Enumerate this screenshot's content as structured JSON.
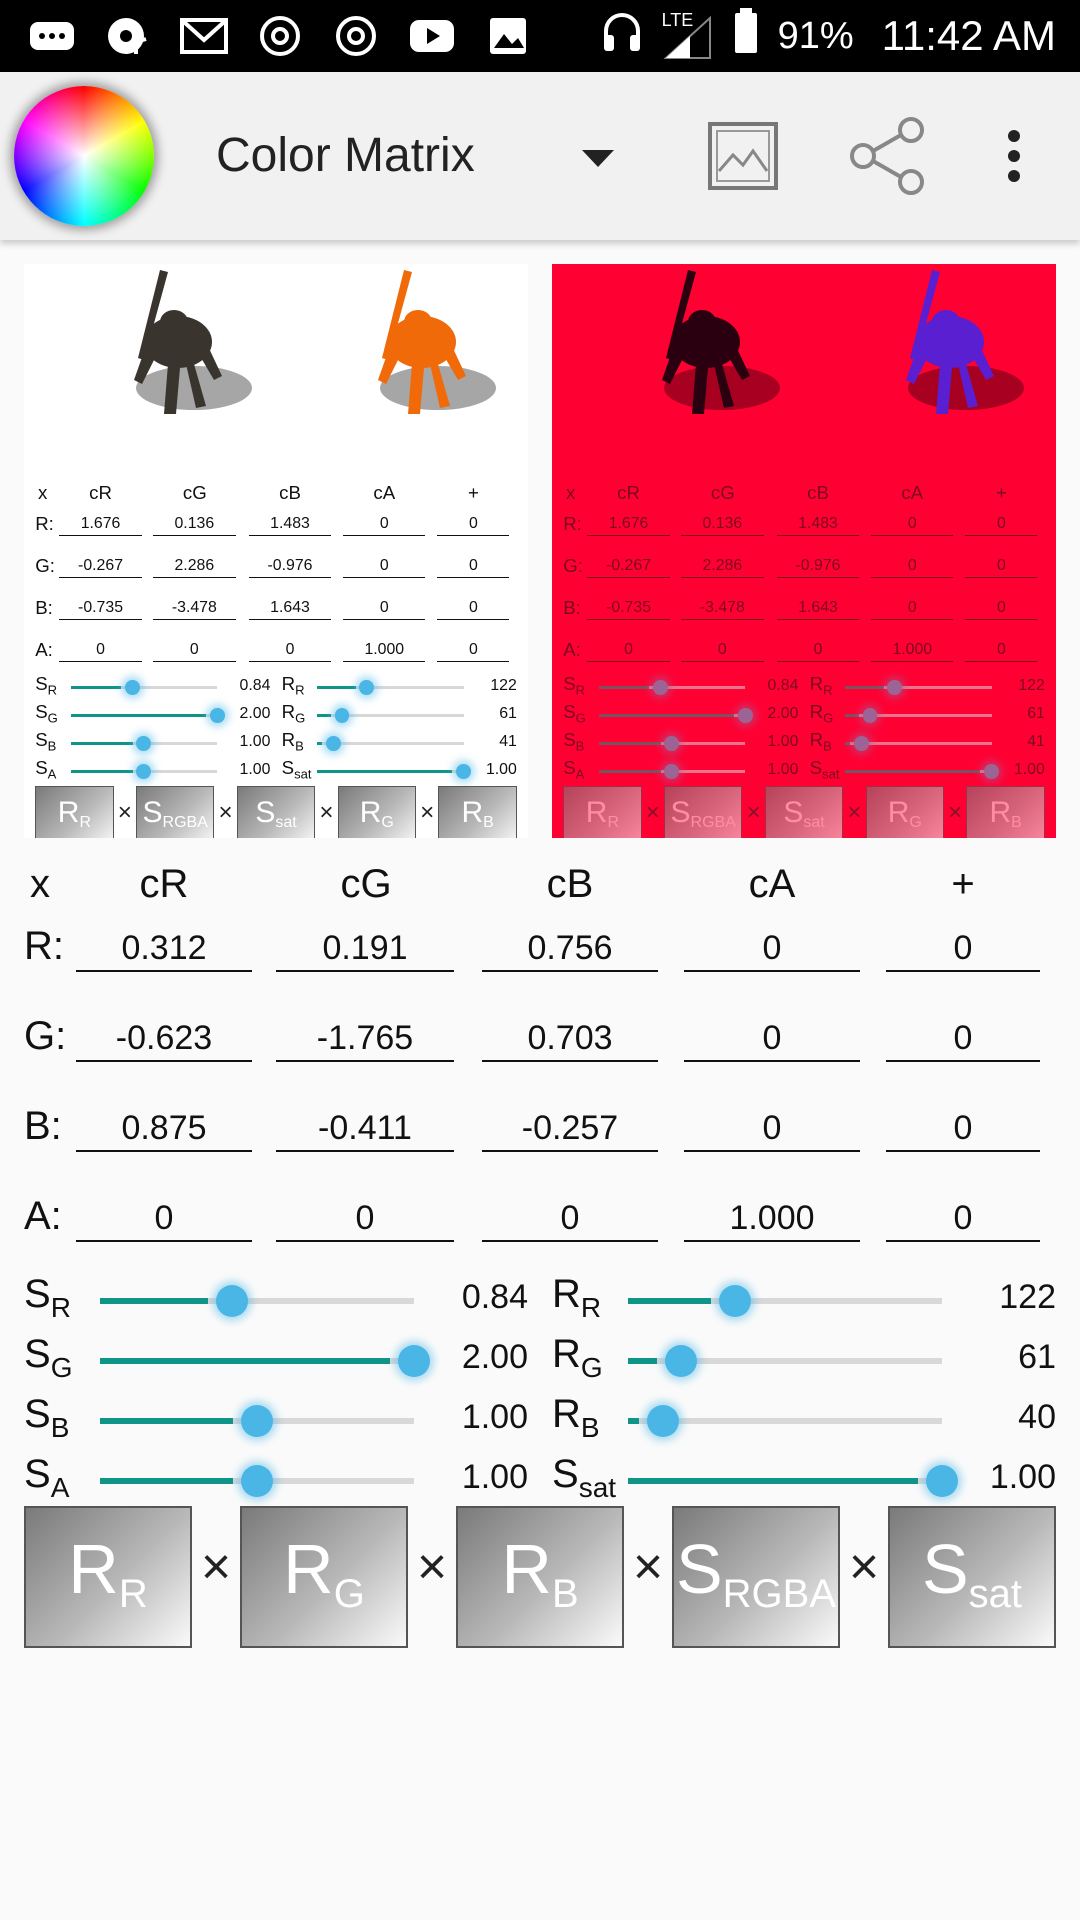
{
  "status_bar": {
    "battery": "91%",
    "time": "11:42 AM",
    "network": "LTE"
  },
  "app": {
    "title": "Color Matrix"
  },
  "matrix": {
    "headers": [
      "x",
      "cR",
      "cG",
      "cB",
      "cA",
      "+"
    ],
    "rows": [
      {
        "label": "R:",
        "values": [
          "0.312",
          "0.191",
          "0.756",
          "0",
          "0"
        ]
      },
      {
        "label": "G:",
        "values": [
          "-0.623",
          "-1.765",
          "0.703",
          "0",
          "0"
        ]
      },
      {
        "label": "B:",
        "values": [
          "0.875",
          "-0.411",
          "-0.257",
          "0",
          "0"
        ]
      },
      {
        "label": "A:",
        "values": [
          "0",
          "0",
          "0",
          "1.000",
          "0"
        ]
      }
    ]
  },
  "preview_matrix": {
    "rows": [
      {
        "label": "R:",
        "values": [
          "1.676",
          "0.136",
          "1.483",
          "0",
          "0"
        ]
      },
      {
        "label": "G:",
        "values": [
          "-0.267",
          "2.286",
          "-0.976",
          "0",
          "0"
        ]
      },
      {
        "label": "B:",
        "values": [
          "-0.735",
          "-3.478",
          "1.643",
          "0",
          "0"
        ]
      },
      {
        "label": "A:",
        "values": [
          "0",
          "0",
          "0",
          "1.000",
          "0"
        ]
      }
    ],
    "sliders_left": [
      {
        "main": "S",
        "sub": "R",
        "value": "0.84",
        "level": 0.42
      },
      {
        "main": "S",
        "sub": "G",
        "value": "2.00",
        "level": 1.0
      },
      {
        "main": "S",
        "sub": "B",
        "value": "1.00",
        "level": 0.5
      },
      {
        "main": "S",
        "sub": "A",
        "value": "1.00",
        "level": 0.5
      }
    ],
    "sliders_right": [
      {
        "main": "R",
        "sub": "R",
        "value": "122",
        "level": 0.34
      },
      {
        "main": "R",
        "sub": "G",
        "value": "61",
        "level": 0.17
      },
      {
        "main": "R",
        "sub": "B",
        "value": "41",
        "level": 0.11
      },
      {
        "main": "S",
        "sub": "sat",
        "value": "1.00",
        "level": 1.0
      }
    ],
    "buttons": [
      {
        "main": "R",
        "sub": "R"
      },
      {
        "main": "S",
        "sub": "RGBA"
      },
      {
        "main": "S",
        "sub": "sat"
      },
      {
        "main": "R",
        "sub": "G"
      },
      {
        "main": "R",
        "sub": "B"
      }
    ]
  },
  "sliders_left": [
    {
      "main": "S",
      "sub": "R",
      "value": "0.84",
      "level": 0.42
    },
    {
      "main": "S",
      "sub": "G",
      "value": "2.00",
      "level": 1.0
    },
    {
      "main": "S",
      "sub": "B",
      "value": "1.00",
      "level": 0.5
    },
    {
      "main": "S",
      "sub": "A",
      "value": "1.00",
      "level": 0.5
    }
  ],
  "sliders_right": [
    {
      "main": "R",
      "sub": "R",
      "value": "122",
      "level": 0.34
    },
    {
      "main": "R",
      "sub": "G",
      "value": "61",
      "level": 0.17
    },
    {
      "main": "R",
      "sub": "B",
      "value": "40",
      "level": 0.11
    },
    {
      "main": "S",
      "sub": "sat",
      "value": "1.00",
      "level": 1.0
    }
  ],
  "buttons": [
    {
      "main": "R",
      "sub": "R"
    },
    {
      "main": "R",
      "sub": "G"
    },
    {
      "main": "R",
      "sub": "B"
    },
    {
      "main": "S",
      "sub": "RGBA"
    },
    {
      "main": "S",
      "sub": "sat"
    }
  ],
  "operator": "×",
  "colors": {
    "accent_teal": "#0f9488",
    "thumb_blue": "#4ab6e6",
    "preview_red": "#ff0033",
    "figure_original": "#3a342e",
    "figure_orange": "#f06a0a",
    "figure_dark": "#2a0010",
    "figure_purple": "#5a1fd0"
  }
}
